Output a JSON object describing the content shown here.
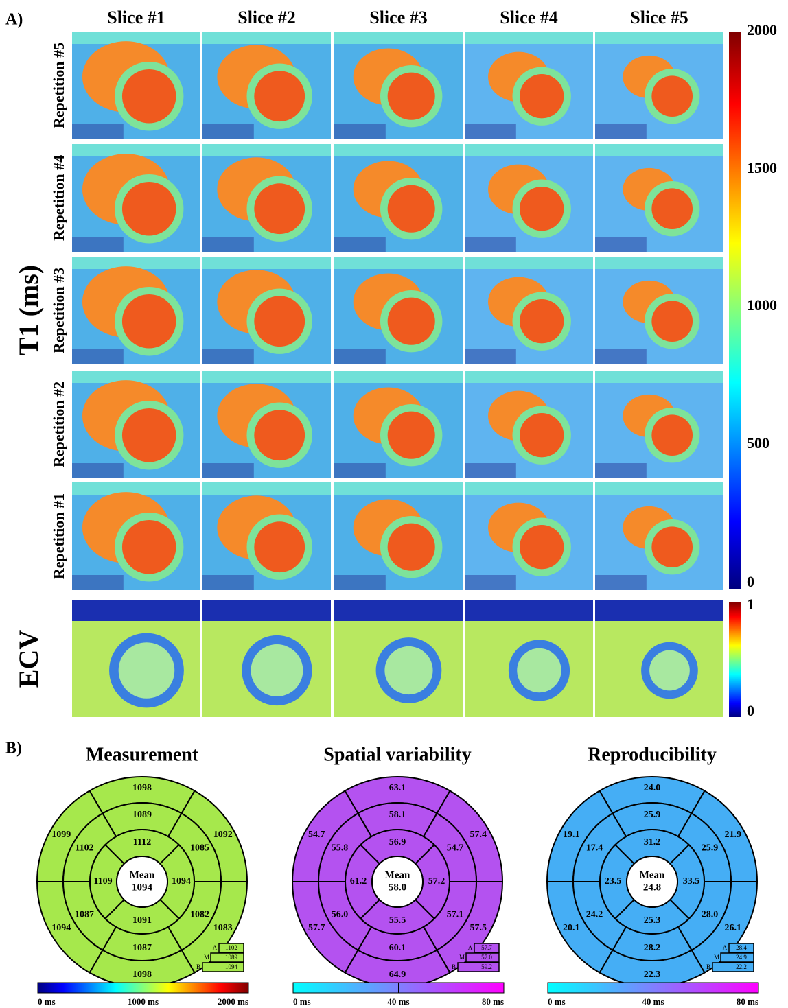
{
  "panel_a": {
    "label": "A)",
    "columns": [
      "Slice #1",
      "Slice #2",
      "Slice #3",
      "Slice #4",
      "Slice #5"
    ],
    "rows": [
      "Repetition #5",
      "Repetition #4",
      "Repetition #3",
      "Repetition #2",
      "Repetition #1"
    ],
    "t1_label": "T1 (ms)",
    "ecv_label": "ECV",
    "t1_colorbar_ticks": [
      "2000",
      "1500",
      "1000",
      "500",
      "0"
    ],
    "ecv_colorbar_ticks": [
      "1",
      "0"
    ]
  },
  "panel_b": {
    "label": "B)",
    "plots": [
      {
        "title": "Measurement",
        "mean_label": "Mean",
        "mean": "1094",
        "outer": [
          "1098",
          "1092",
          "1083",
          "1098",
          "1094",
          "1099"
        ],
        "middle": [
          "1089",
          "1085",
          "1082",
          "1087",
          "1087",
          "1102"
        ],
        "inner": [
          "1112",
          "1094",
          "1091",
          "1109"
        ],
        "apex_labels": [
          "A",
          "M",
          "B"
        ],
        "apex": [
          "1102",
          "1089",
          "1094"
        ],
        "colorbar": [
          "0 ms",
          "1000 ms",
          "2000 ms"
        ]
      },
      {
        "title": "Spatial variability",
        "mean_label": "Mean",
        "mean": "58.0",
        "outer": [
          "63.1",
          "57.4",
          "57.5",
          "64.9",
          "57.7",
          "54.7"
        ],
        "middle": [
          "58.1",
          "54.7",
          "57.1",
          "60.1",
          "56.0",
          "55.8"
        ],
        "inner": [
          "56.9",
          "57.2",
          "55.5",
          "61.2"
        ],
        "apex_labels": [
          "A",
          "M",
          "B"
        ],
        "apex": [
          "57.7",
          "57.0",
          "59.2"
        ],
        "colorbar": [
          "0 ms",
          "40 ms",
          "80 ms"
        ]
      },
      {
        "title": "Reproducibility",
        "mean_label": "Mean",
        "mean": "24.8",
        "outer": [
          "24.0",
          "21.9",
          "26.1",
          "22.3",
          "20.1",
          "19.1"
        ],
        "middle": [
          "25.9",
          "25.9",
          "28.0",
          "28.2",
          "24.2",
          "17.4"
        ],
        "inner": [
          "31.2",
          "33.5",
          "25.3",
          "23.5"
        ],
        "apex_labels": [
          "A",
          "M",
          "B"
        ],
        "apex": [
          "28.4",
          "24.9",
          "22.2"
        ],
        "colorbar": [
          "0 ms",
          "40 ms",
          "80 ms"
        ]
      }
    ]
  }
}
